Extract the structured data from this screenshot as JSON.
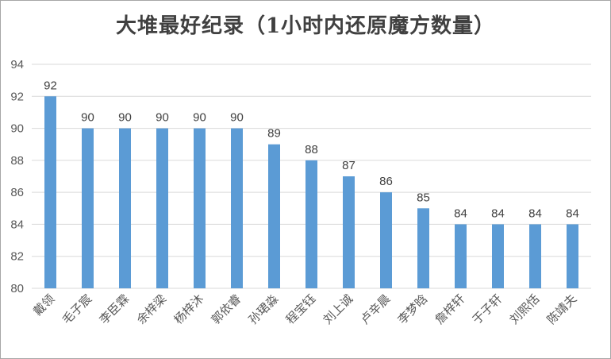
{
  "chart_data": {
    "type": "bar",
    "title": "大堆最好纪录（1小时内还原魔方数量）",
    "xlabel": "",
    "ylabel": "",
    "categories": [
      "戴领",
      "毛子宸",
      "李臣霖",
      "余梓梁",
      "杨梓沐",
      "郭依睿",
      "孙珺淼",
      "程宝钰",
      "刘上诚",
      "卢辛晨",
      "李梦晗",
      "詹梓轩",
      "于子轩",
      "刘熙恬",
      "陈靖夫"
    ],
    "values": [
      92,
      90,
      90,
      90,
      90,
      90,
      89,
      88,
      87,
      86,
      85,
      84,
      84,
      84,
      84
    ],
    "ylim": [
      80,
      94
    ],
    "yticks": [
      80,
      82,
      84,
      86,
      88,
      90,
      92,
      94
    ],
    "grid": true,
    "legend": "none",
    "bar_color": "#5b9bd5",
    "grid_color": "#d9d9d9"
  }
}
